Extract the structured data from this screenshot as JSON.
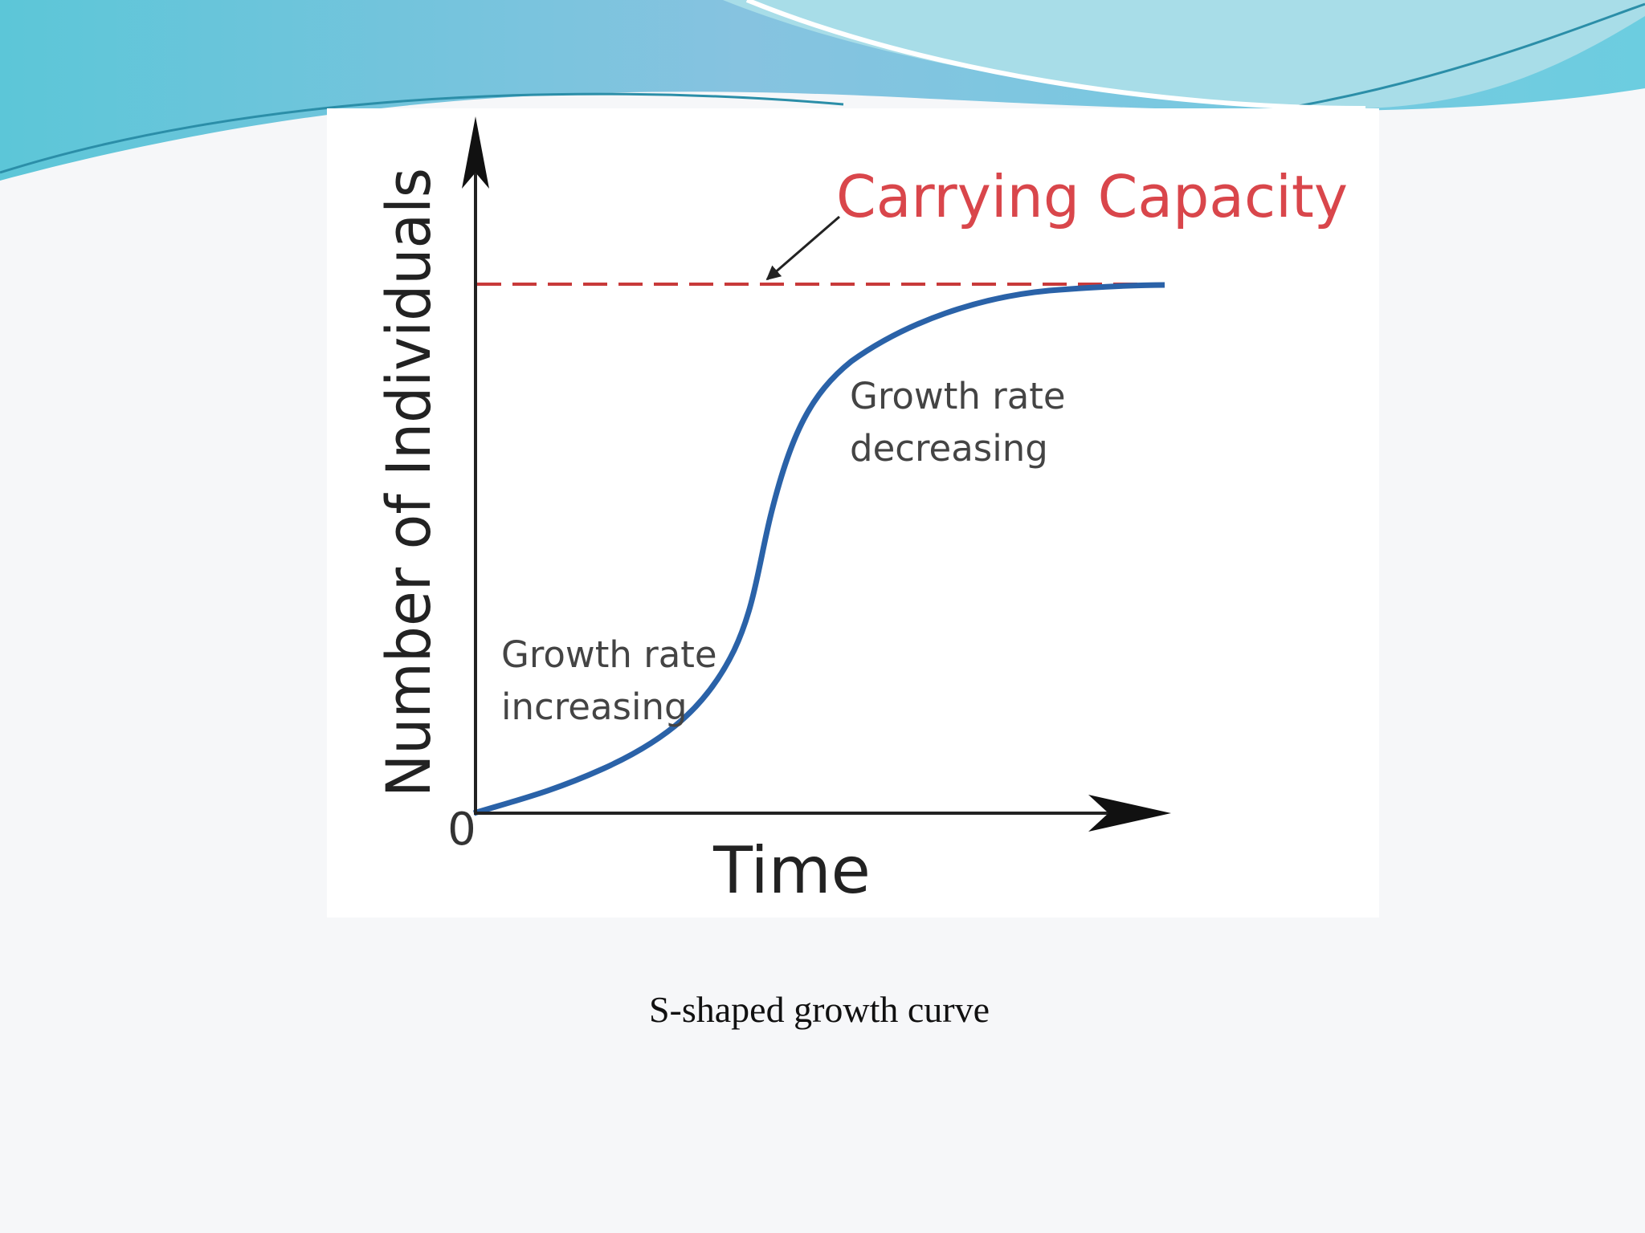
{
  "diagram": {
    "y_axis_label": "Number of Individuals",
    "x_axis_label": "Time",
    "origin_label": "0",
    "carrying_capacity_label": "Carrying Capacity",
    "annotations": [
      {
        "lines": [
          "Growth rate",
          "increasing"
        ]
      },
      {
        "lines": [
          "Growth rate",
          "decreasing"
        ]
      }
    ]
  },
  "caption": "S-shaped growth curve"
}
